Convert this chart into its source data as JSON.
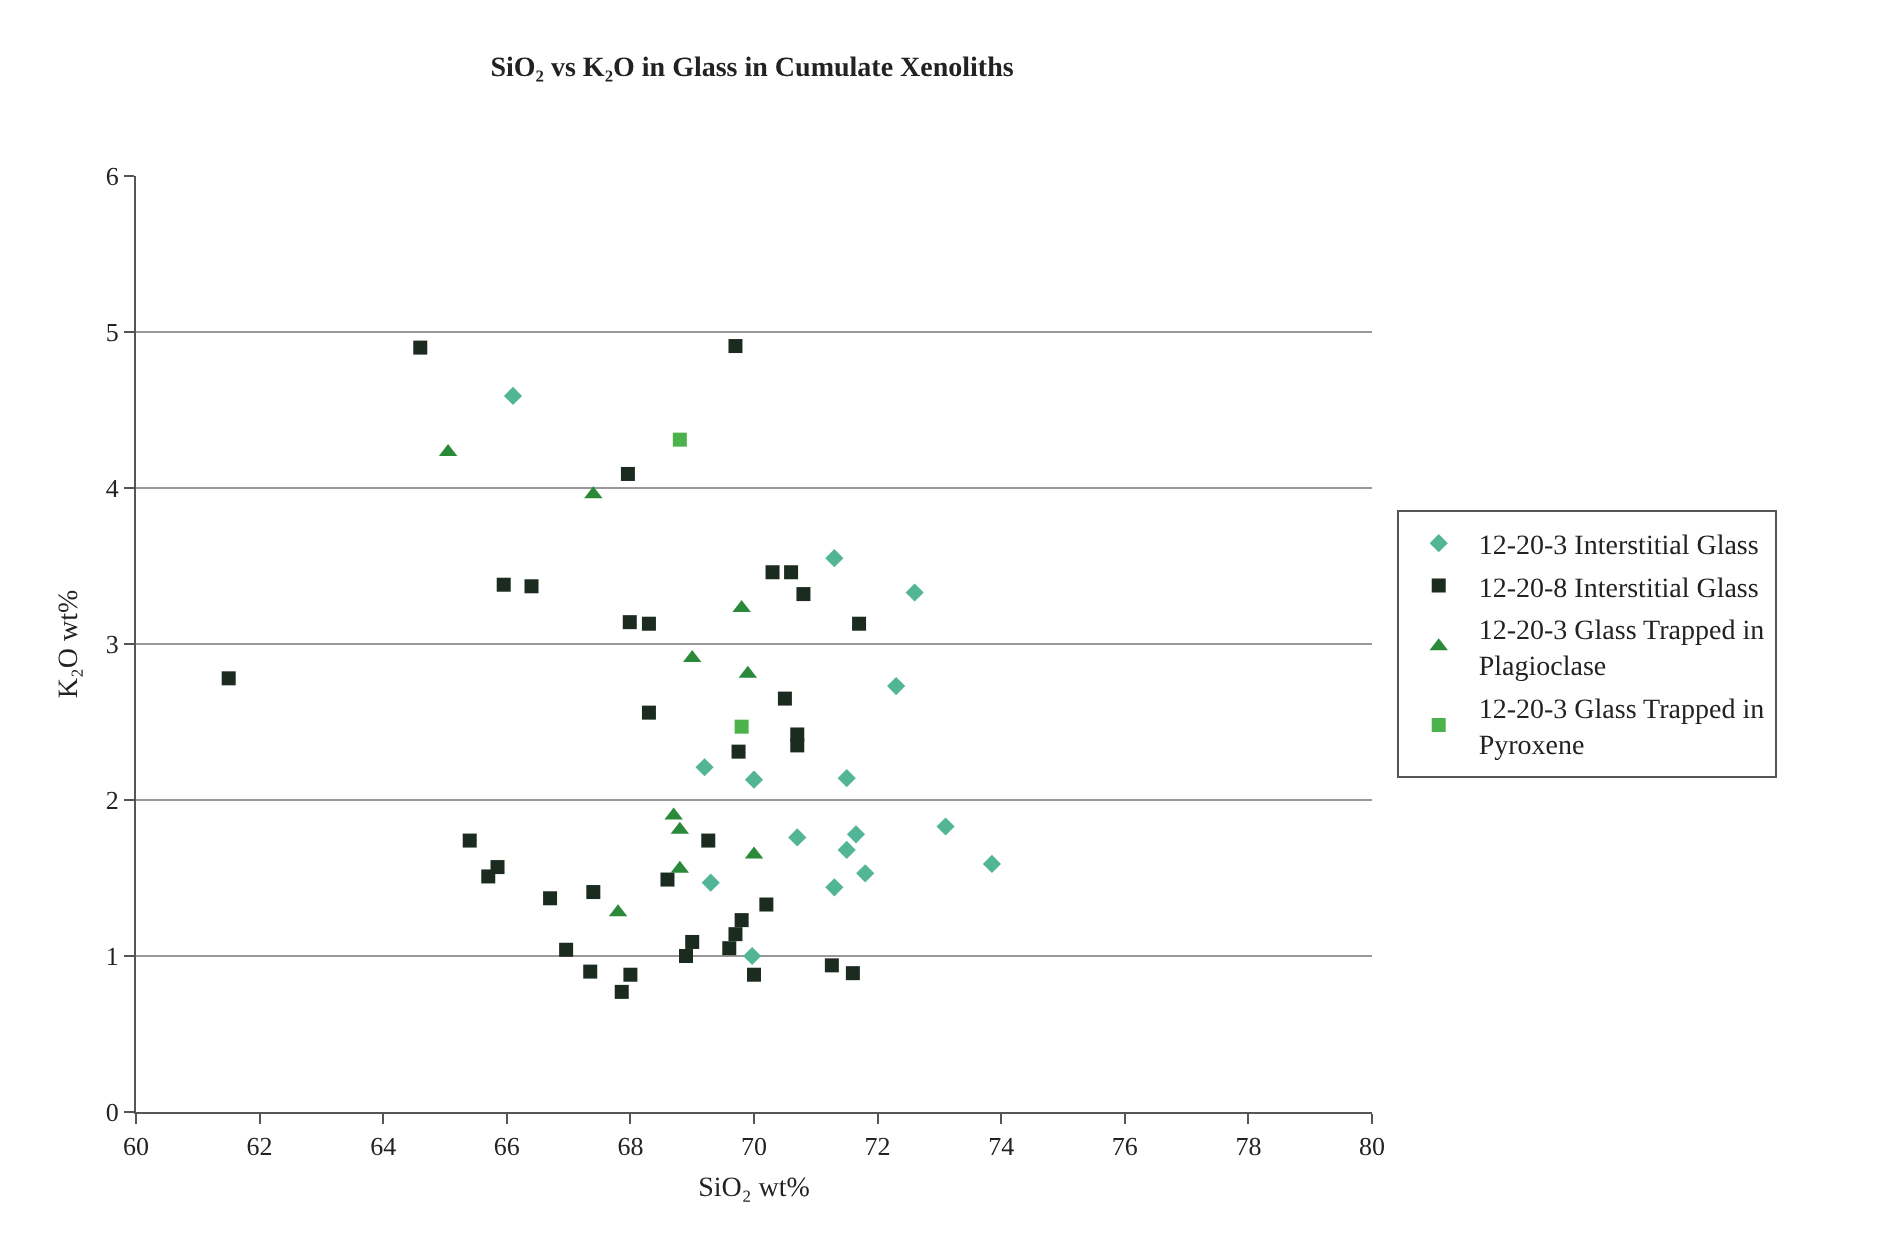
{
  "chart_data": {
    "type": "scatter",
    "title": "SiO₂ vs K₂O in Glass in Cumulate Xenoliths",
    "xlabel": "SiO₂ wt%",
    "ylabel": "K₂O wt%",
    "xlim": [
      60,
      80
    ],
    "xticks": [
      60,
      62,
      64,
      66,
      68,
      70,
      72,
      74,
      76,
      78,
      80
    ],
    "ylim": [
      0,
      6
    ],
    "yticks": [
      0,
      1,
      2,
      3,
      4,
      5,
      6
    ],
    "grid": "y",
    "legend": "right",
    "series": [
      {
        "name": "12-20-3 Interstitial Glass",
        "color": "#52b596",
        "marker": "diamond",
        "x": [
          66.1,
          71.3,
          72.6,
          72.3,
          69.2,
          70.0,
          71.5,
          70.7,
          71.65,
          73.1,
          71.5,
          71.8,
          73.85,
          71.3,
          69.3,
          69.97
        ],
        "values": [
          4.59,
          3.55,
          3.33,
          2.73,
          2.21,
          2.13,
          2.14,
          1.76,
          1.78,
          1.83,
          1.68,
          1.53,
          1.59,
          1.44,
          1.47,
          1.0
        ]
      },
      {
        "name": "12-20-8 Interstitial Glass",
        "color": "#1c2b20",
        "marker": "square",
        "x": [
          64.6,
          69.7,
          67.96,
          65.95,
          66.4,
          67.99,
          68.3,
          61.5,
          68.3,
          69.75,
          70.3,
          70.6,
          70.8,
          71.7,
          70.5,
          70.7,
          70.7,
          65.4,
          65.85,
          65.7,
          66.7,
          67.4,
          66.96,
          67.35,
          67.86,
          68.0,
          68.6,
          69.26,
          70.2,
          69.8,
          69.7,
          69.6,
          69.0,
          68.9,
          70.0,
          71.26,
          71.6
        ],
        "values": [
          4.9,
          4.91,
          4.09,
          3.38,
          3.37,
          3.14,
          3.13,
          2.78,
          2.56,
          2.31,
          3.46,
          3.46,
          3.32,
          3.13,
          2.65,
          2.42,
          2.35,
          1.74,
          1.57,
          1.51,
          1.37,
          1.41,
          1.04,
          0.9,
          0.77,
          0.88,
          1.49,
          1.74,
          1.33,
          1.23,
          1.14,
          1.05,
          1.09,
          1.0,
          0.88,
          0.94,
          0.89
        ]
      },
      {
        "name": "12-20-3 Glass Trapped in Plagioclase",
        "color": "#2a8a3a",
        "marker": "triangle",
        "x": [
          65.05,
          67.4,
          69.8,
          69.0,
          69.9,
          68.7,
          68.8,
          68.8,
          70.0,
          67.8
        ],
        "values": [
          4.23,
          3.96,
          3.23,
          2.91,
          2.81,
          1.9,
          1.81,
          1.56,
          1.65,
          1.28
        ]
      },
      {
        "name": "12-20-3 Glass Trapped in Pyroxene",
        "color": "#4cb34c",
        "marker": "square",
        "x": [
          68.8,
          69.8
        ],
        "values": [
          4.31,
          2.47
        ]
      }
    ]
  }
}
